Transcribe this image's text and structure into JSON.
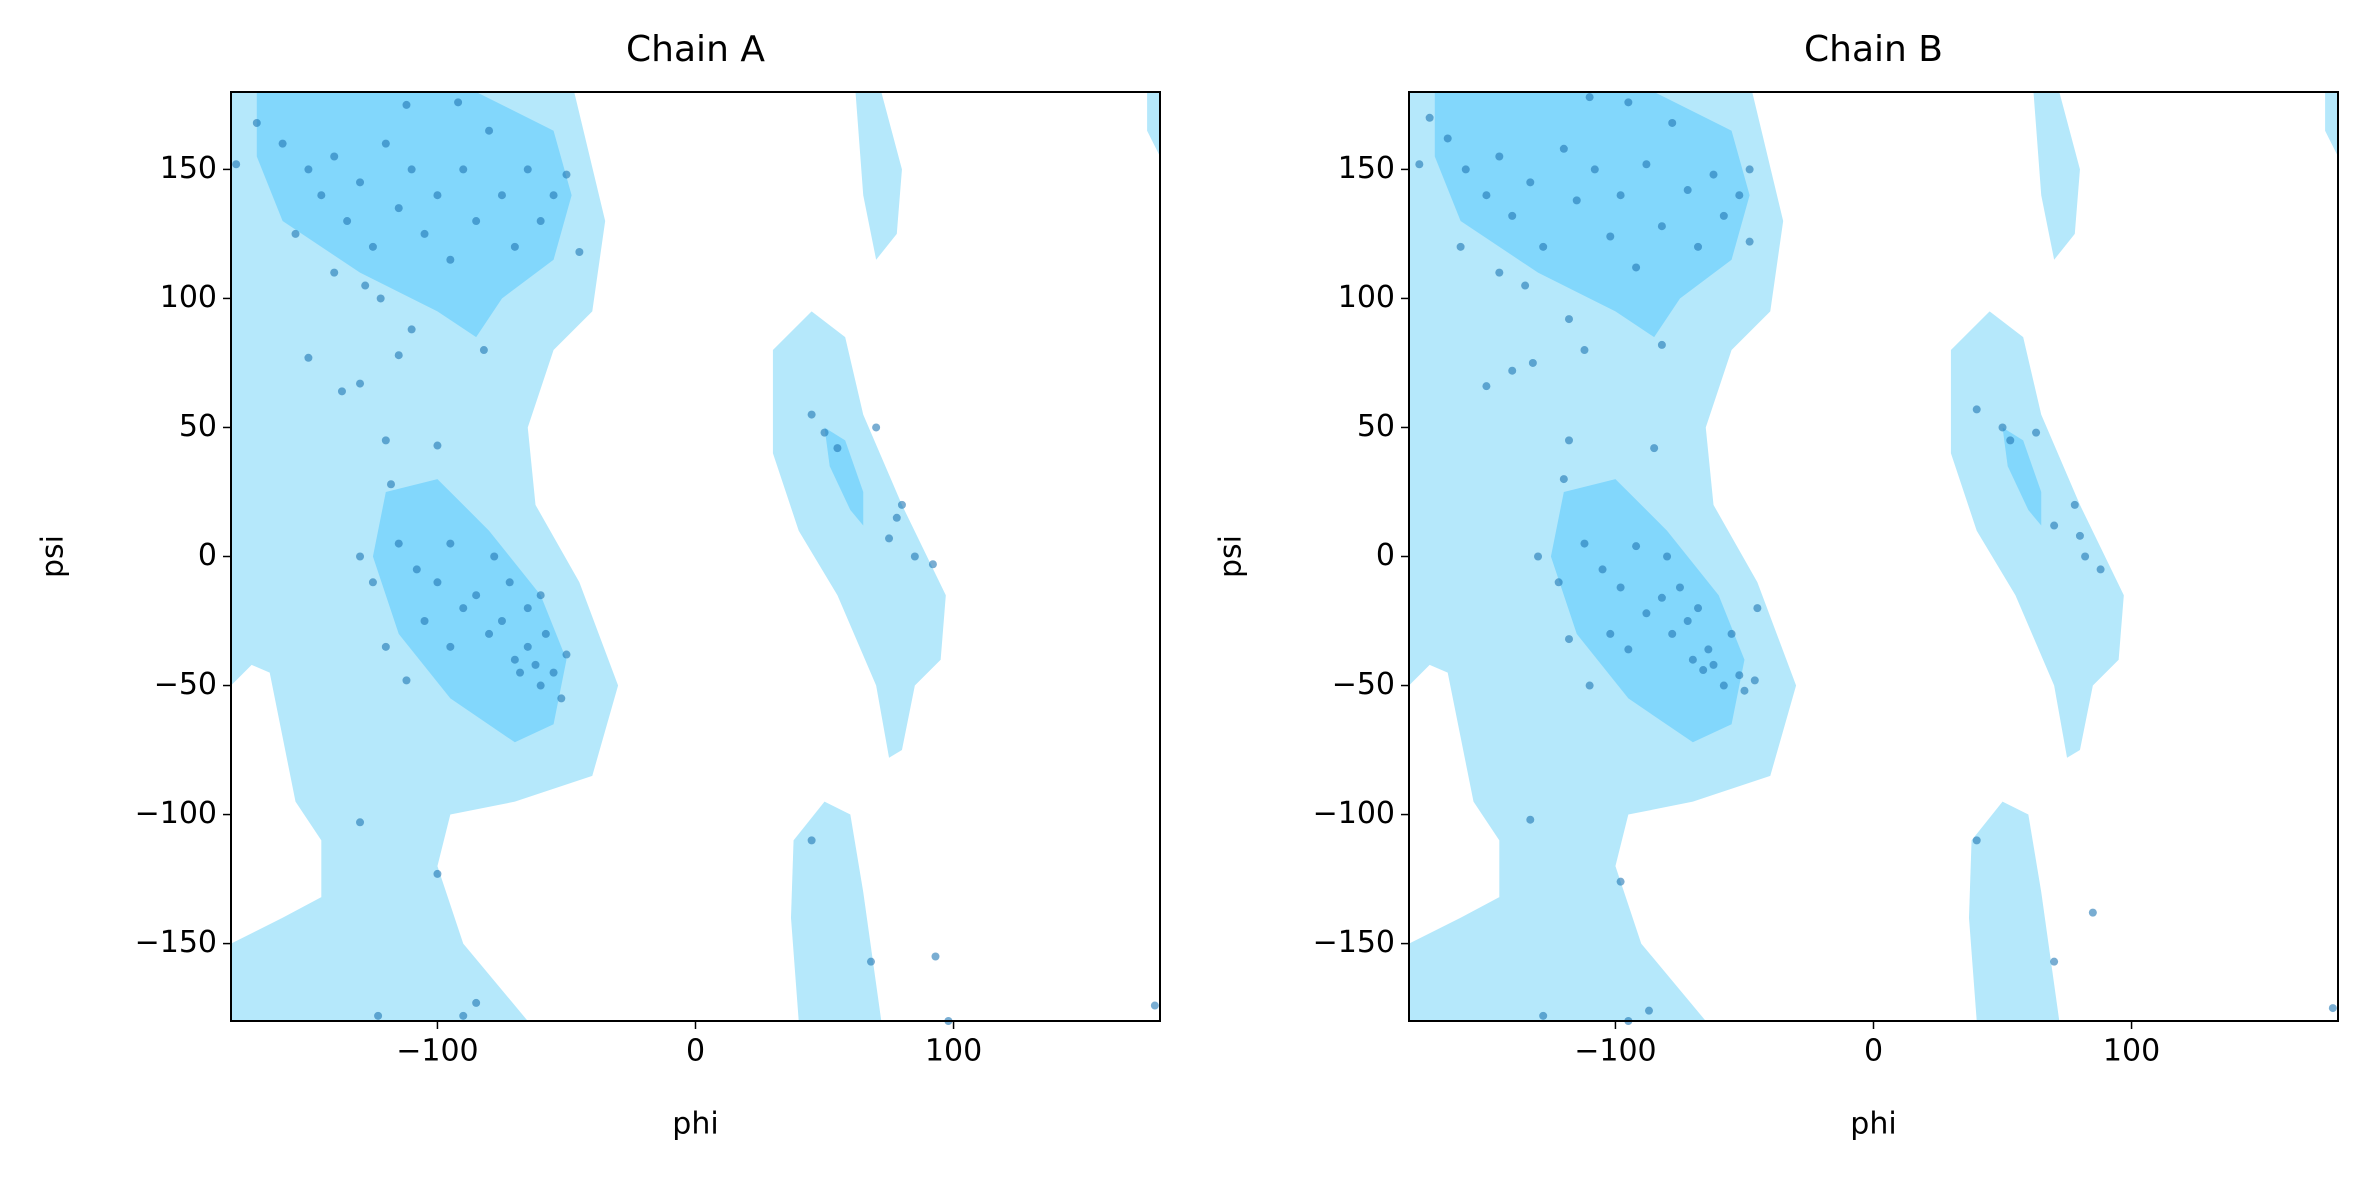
{
  "chart_data": [
    {
      "type": "scatter",
      "title": "Chain A",
      "x_label": "phi",
      "y_label": "psi",
      "color": "#1f77b4",
      "xlim": [
        -180,
        180
      ],
      "ylim": [
        -180,
        180
      ],
      "xticks": [
        {
          "value": -100,
          "label": "−100"
        },
        0,
        100
      ],
      "yticks": [
        {
          "value": -150,
          "label": "−150"
        },
        {
          "value": -100,
          "label": "−100"
        },
        {
          "value": -50,
          "label": "−50"
        },
        0,
        50,
        100,
        150
      ],
      "x": [
        -170,
        -160,
        -150,
        -145,
        -140,
        -135,
        -130,
        -125,
        -120,
        -115,
        -110,
        -105,
        -100,
        -95,
        -90,
        -85,
        -80,
        -75,
        -70,
        -65,
        -60,
        -55,
        -50,
        -155,
        -128,
        -140,
        -112,
        -92,
        -122,
        -110,
        -82,
        -45,
        -178,
        -115,
        -137,
        -130,
        -150,
        -120,
        -100,
        -118,
        -130,
        -125,
        -115,
        -108,
        -100,
        -95,
        -90,
        -85,
        -80,
        -75,
        -70,
        -68,
        -65,
        -62,
        -60,
        -58,
        -55,
        -52,
        -50,
        -72,
        -78,
        -105,
        -95,
        -112,
        -120,
        -65,
        -60,
        45,
        50,
        55,
        70,
        80,
        75,
        85,
        92,
        78,
        -130,
        -100,
        -85,
        -90,
        -123,
        45,
        68,
        93,
        98,
        178
      ],
      "values": [
        168,
        160,
        150,
        140,
        155,
        130,
        145,
        120,
        160,
        135,
        150,
        125,
        140,
        115,
        150,
        130,
        165,
        140,
        120,
        150,
        130,
        140,
        148,
        125,
        105,
        110,
        175,
        176,
        100,
        88,
        80,
        118,
        152,
        78,
        64,
        67,
        77,
        45,
        43,
        28,
        0,
        -10,
        5,
        -5,
        -10,
        5,
        -20,
        -15,
        -30,
        -25,
        -40,
        -45,
        -35,
        -42,
        -50,
        -30,
        -45,
        -55,
        -38,
        -10,
        0,
        -25,
        -35,
        -48,
        -35,
        -20,
        -15,
        55,
        48,
        42,
        50,
        20,
        7,
        0,
        -3,
        15,
        -103,
        -123,
        -173,
        -178,
        -178,
        -110,
        -157,
        -155,
        -180,
        -174
      ]
    },
    {
      "type": "scatter",
      "title": "Chain B",
      "x_label": "phi",
      "y_label": "psi",
      "color": "#1f77b4",
      "xlim": [
        -180,
        180
      ],
      "ylim": [
        -180,
        180
      ],
      "xticks": [
        {
          "value": -100,
          "label": "−100"
        },
        0,
        100
      ],
      "yticks": [
        {
          "value": -150,
          "label": "−150"
        },
        {
          "value": -100,
          "label": "−100"
        },
        {
          "value": -50,
          "label": "−50"
        },
        0,
        50,
        100,
        150
      ],
      "x": [
        -172,
        -165,
        -158,
        -150,
        -145,
        -140,
        -133,
        -128,
        -120,
        -115,
        -108,
        -102,
        -98,
        -92,
        -88,
        -82,
        -78,
        -72,
        -68,
        -62,
        -58,
        -52,
        -48,
        -160,
        -135,
        -145,
        -110,
        -95,
        -118,
        -112,
        -82,
        -48,
        -176,
        -150,
        -132,
        -140,
        -118,
        -85,
        -120,
        -130,
        -122,
        -112,
        -105,
        -98,
        -92,
        -88,
        -82,
        -78,
        -72,
        -70,
        -66,
        -64,
        -62,
        -58,
        -55,
        -52,
        -50,
        -46,
        -75,
        -80,
        -102,
        -95,
        -110,
        -118,
        -68,
        -45,
        40,
        50,
        53,
        63,
        78,
        70,
        82,
        88,
        80,
        -133,
        -98,
        -87,
        -95,
        -128,
        40,
        70,
        85,
        178
      ],
      "values": [
        170,
        162,
        150,
        140,
        155,
        132,
        145,
        120,
        158,
        138,
        150,
        124,
        140,
        112,
        152,
        128,
        168,
        142,
        120,
        148,
        132,
        140,
        150,
        120,
        105,
        110,
        178,
        176,
        92,
        80,
        82,
        122,
        152,
        66,
        75,
        72,
        45,
        42,
        30,
        0,
        -10,
        5,
        -5,
        -12,
        4,
        -22,
        -16,
        -30,
        -25,
        -40,
        -44,
        -36,
        -42,
        -50,
        -30,
        -46,
        -52,
        -48,
        -12,
        0,
        -30,
        -36,
        -50,
        -32,
        -20,
        -20,
        57,
        50,
        45,
        48,
        20,
        12,
        0,
        -5,
        8,
        -102,
        -126,
        -176,
        -180,
        -178,
        -110,
        -157,
        -138,
        -175
      ]
    }
  ]
}
